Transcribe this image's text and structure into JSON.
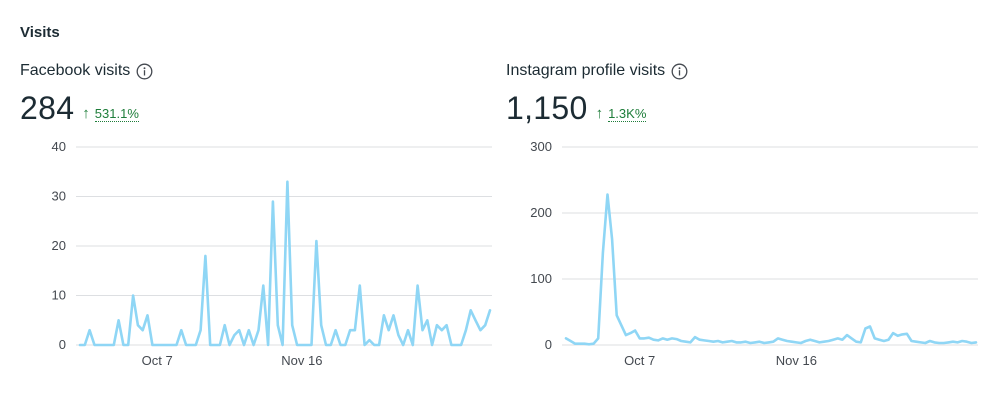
{
  "section": {
    "title": "Visits"
  },
  "facebook": {
    "label": "Facebook visits",
    "value": "284",
    "change": "531.1%"
  },
  "instagram": {
    "label": "Instagram profile visits",
    "value": "1,150",
    "change": "1.3K%"
  },
  "colors": {
    "line": "#8fd6f5",
    "grid": "#dddfe2",
    "positive": "#1e7d3a"
  },
  "chart_data": [
    {
      "type": "line",
      "title": "Facebook visits",
      "ylim": [
        0,
        40
      ],
      "yticks": [
        "0",
        "10",
        "20",
        "30",
        "40"
      ],
      "xticks": [
        {
          "label": "Oct 7",
          "index": 16
        },
        {
          "label": "Nov 16",
          "index": 46
        }
      ],
      "grid": true,
      "series": [
        {
          "values": [
            0,
            0,
            3,
            0,
            0,
            0,
            0,
            0,
            5,
            0,
            0,
            10,
            4,
            3,
            6,
            0,
            0,
            0,
            0,
            0,
            0,
            3,
            0,
            0,
            0,
            3,
            18,
            0,
            0,
            0,
            4,
            0,
            2,
            3,
            0,
            3,
            0,
            3,
            12,
            0,
            29,
            4,
            0,
            33,
            4,
            0,
            0,
            0,
            0,
            21,
            4,
            0,
            0,
            3,
            0,
            0,
            3,
            3,
            12,
            0,
            1,
            0,
            0,
            6,
            3,
            6,
            2,
            0,
            3,
            0,
            12,
            3,
            5,
            0,
            4,
            3,
            4,
            0,
            0,
            0,
            3,
            7,
            5,
            3,
            4,
            7
          ]
        }
      ]
    },
    {
      "type": "line",
      "title": "Instagram profile visits",
      "ylim": [
        0,
        300
      ],
      "yticks": [
        "0",
        "100",
        "200",
        "300"
      ],
      "xticks": [
        {
          "label": "Oct 7",
          "index": 16
        },
        {
          "label": "Nov 16",
          "index": 50
        }
      ],
      "grid": true,
      "series": [
        {
          "values": [
            10,
            6,
            2,
            2,
            2,
            1,
            2,
            10,
            140,
            228,
            160,
            45,
            30,
            15,
            18,
            22,
            10,
            10,
            11,
            8,
            7,
            10,
            8,
            10,
            9,
            6,
            5,
            4,
            12,
            8,
            7,
            6,
            5,
            6,
            4,
            5,
            6,
            4,
            4,
            5,
            3,
            4,
            5,
            3,
            4,
            5,
            10,
            8,
            6,
            5,
            4,
            3,
            6,
            8,
            6,
            4,
            5,
            6,
            8,
            10,
            8,
            15,
            10,
            5,
            4,
            25,
            28,
            10,
            8,
            6,
            8,
            18,
            14,
            16,
            17,
            6,
            5,
            4,
            3,
            6,
            4,
            3,
            3,
            4,
            5,
            4,
            6,
            5,
            3,
            4
          ]
        }
      ]
    }
  ]
}
